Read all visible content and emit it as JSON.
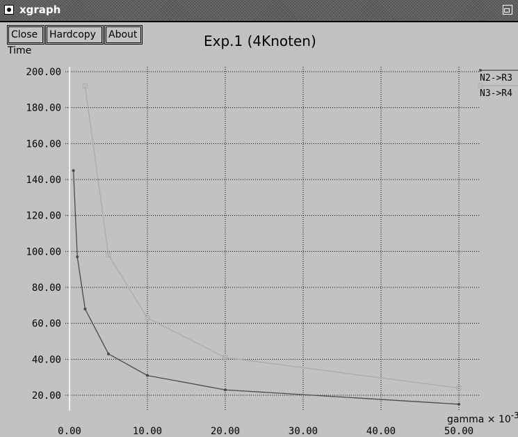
{
  "window": {
    "title": "xgraph"
  },
  "buttons": {
    "close": "Close",
    "hardcopy": "Hardcopy",
    "about": "About"
  },
  "chart_data": {
    "type": "line",
    "title": "Exp.1 (4Knoten)",
    "ylabel": "Time",
    "xlabel": "gamma",
    "xlabel_suffix": "x 10",
    "xlabel_exponent": "-3",
    "xlim": [
      0,
      50
    ],
    "ylim": [
      10,
      200
    ],
    "x_ticks": [
      "0.00",
      "10.00",
      "20.00",
      "30.00",
      "40.00",
      "50.00"
    ],
    "y_ticks": [
      "20.00",
      "40.00",
      "60.00",
      "80.00",
      "100.00",
      "120.00",
      "140.00",
      "160.00",
      "180.00",
      "200.00"
    ],
    "grid": true,
    "legend_position": "right",
    "series": [
      {
        "name": "N2->R3",
        "color": "#4a4a4a",
        "x": [
          0.5,
          1,
          2,
          5,
          10,
          20,
          50
        ],
        "y": [
          145,
          97,
          68,
          43,
          31,
          23,
          15
        ]
      },
      {
        "name": "N3->R4",
        "color": "#a9a9a9",
        "x": [
          2,
          5,
          10,
          20,
          50
        ],
        "y": [
          192,
          98,
          63,
          41,
          24
        ]
      }
    ]
  }
}
